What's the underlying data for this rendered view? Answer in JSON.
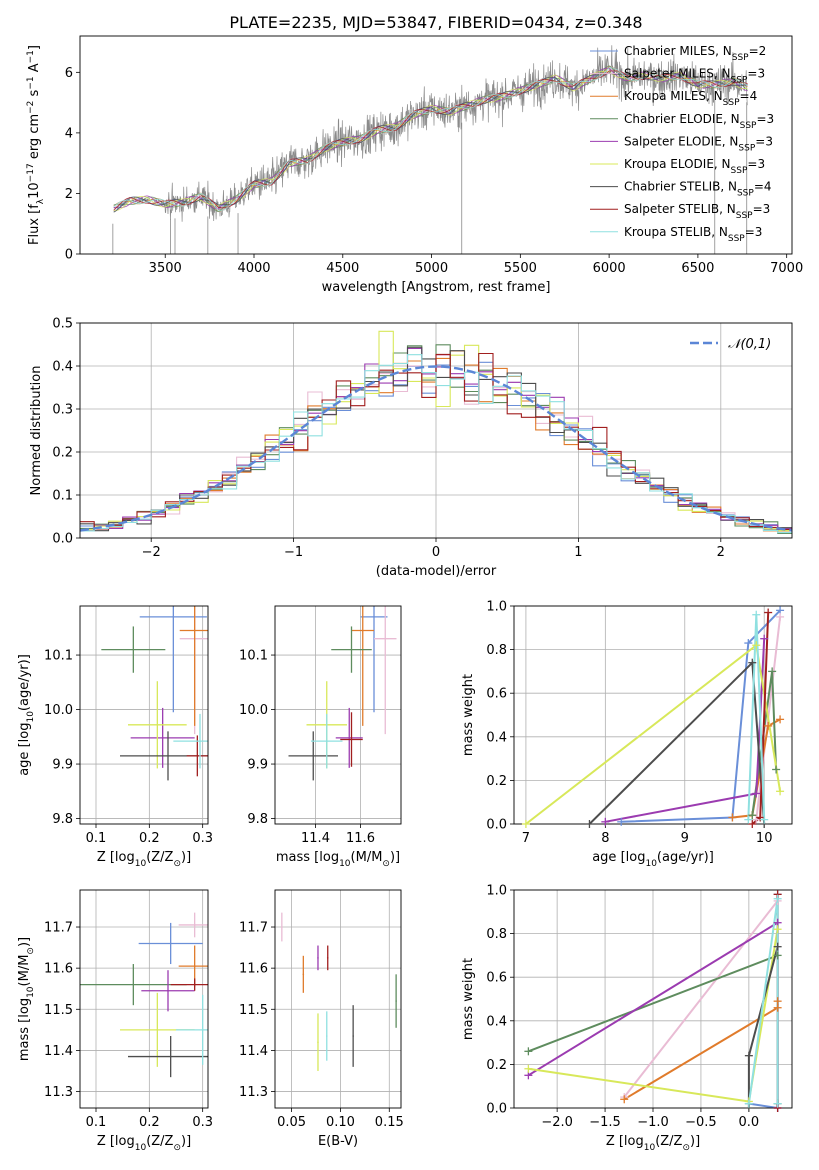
{
  "figure_title": "PLATE=2235, MJD=53847, FIBERID=0434, z=0.348",
  "models": [
    {
      "label": "Chabrier MILES, N",
      "nssp": "2",
      "color": "#6a8fd8"
    },
    {
      "label": "Salpeter MILES, N",
      "nssp": "3",
      "color": "#e9bcd4"
    },
    {
      "label": "Kroupa MILES, N",
      "nssp": "4",
      "color": "#e07b2b"
    },
    {
      "label": "Chabrier ELODIE, N",
      "nssp": "3",
      "color": "#5e8c5e"
    },
    {
      "label": "Salpeter ELODIE, N",
      "nssp": "3",
      "color": "#9b3bb0"
    },
    {
      "label": "Kroupa ELODIE, N",
      "nssp": "3",
      "color": "#d8e85a"
    },
    {
      "label": "Chabrier STELIB, N",
      "nssp": "4",
      "color": "#4d4d4d"
    },
    {
      "label": "Salpeter STELIB, N",
      "nssp": "3",
      "color": "#a11f1f"
    },
    {
      "label": "Kroupa STELIB, N",
      "nssp": "3",
      "color": "#8fe0e0"
    }
  ],
  "legend_subscript": "SSP",
  "chart_data": [
    {
      "id": "spectrum",
      "type": "line",
      "xlabel": "wavelength [Angstrom, rest frame]",
      "ylabel": "Flux [f$_\\lambda$10$^{-17}$ erg cm$^{-2}$ s$^{-1}$ A$^{-1}$]",
      "xlim": [
        3020,
        7030
      ],
      "ylim": [
        0,
        7.2
      ],
      "xticks": [
        3500,
        4000,
        4500,
        5000,
        5500,
        6000,
        6500,
        7000
      ],
      "yticks": [
        0,
        2,
        4,
        6
      ],
      "continuum": {
        "x": [
          3210,
          3300,
          3400,
          3500,
          3600,
          3700,
          3800,
          3900,
          4000,
          4100,
          4200,
          4300,
          4400,
          4500,
          4600,
          4700,
          4800,
          4900,
          5000,
          5100,
          5200,
          5300,
          5400,
          5500,
          5600,
          5700,
          5800,
          5900,
          6000,
          6100,
          6200,
          6300,
          6400,
          6500,
          6600,
          6700,
          6780
        ],
        "y": [
          1.5,
          1.75,
          1.8,
          1.65,
          1.7,
          1.9,
          1.5,
          1.8,
          2.3,
          2.4,
          3.0,
          3.1,
          3.5,
          3.7,
          3.8,
          4.1,
          4.2,
          4.6,
          4.8,
          4.7,
          4.9,
          5.1,
          5.2,
          5.4,
          5.6,
          5.8,
          5.5,
          5.8,
          6.1,
          5.8,
          5.9,
          5.8,
          5.9,
          5.6,
          5.6,
          5.7,
          5.5
        ]
      }
    },
    {
      "id": "residuals",
      "type": "histogram",
      "xlabel": "(data-model)/error",
      "ylabel": "Normed distribution",
      "xlim": [
        -2.5,
        2.5
      ],
      "ylim": [
        0,
        0.5
      ],
      "xticks": [
        -2,
        -1,
        0,
        1,
        2
      ],
      "yticks": [
        0.0,
        0.1,
        0.2,
        0.3,
        0.4,
        0.5
      ],
      "reference_label": "$\\mathcal{N}(0,1)$",
      "legend": "top-right",
      "bin_width": 0.1
    },
    {
      "id": "z-vs-age",
      "type": "errorbar",
      "xlabel": "Z [log$_{10}$(Z/Z$_\\odot$)]",
      "ylabel": "age  [log$_{10}$(age/yr)]",
      "xlim": [
        0.07,
        0.31
      ],
      "ylim": [
        9.79,
        10.19
      ],
      "xticks": [
        0.1,
        0.2,
        0.3
      ],
      "yticks": [
        9.8,
        9.9,
        10.0,
        10.1
      ],
      "points": [
        {
          "m": 0,
          "x": 0.245,
          "y": 10.17,
          "xerr": 0.063,
          "yerr": 0.35
        },
        {
          "m": 1,
          "x": 0.285,
          "y": 10.13,
          "xerr": 0.028,
          "yerr": 0.35
        },
        {
          "m": 2,
          "x": 0.285,
          "y": 10.145,
          "xerr": 0.028,
          "yerr": 0.35
        },
        {
          "m": 3,
          "x": 0.17,
          "y": 10.11,
          "xerr": 0.06,
          "yerr": 0.085
        },
        {
          "m": 4,
          "x": 0.225,
          "y": 9.948,
          "xerr": 0.06,
          "yerr": 0.11
        },
        {
          "m": 5,
          "x": 0.215,
          "y": 9.972,
          "xerr": 0.055,
          "yerr": 0.16
        },
        {
          "m": 6,
          "x": 0.235,
          "y": 9.915,
          "xerr": 0.09,
          "yerr": 0.09
        },
        {
          "m": 7,
          "x": 0.29,
          "y": 9.915,
          "xerr": 0.02,
          "yerr": 0.075
        },
        {
          "m": 8,
          "x": 0.295,
          "y": 9.942,
          "xerr": 0.05,
          "yerr": 0.1
        }
      ]
    },
    {
      "id": "mass-vs-age",
      "type": "errorbar",
      "xlabel": "mass [log$_{10}$(M/M$_\\odot$)]",
      "ylabel": "",
      "xlim": [
        11.22,
        11.78
      ],
      "ylim": [
        9.79,
        10.19
      ],
      "xticks": [
        11.4,
        11.6
      ],
      "yticks": [
        9.8,
        9.9,
        10.0,
        10.1
      ],
      "points": [
        {
          "m": 0,
          "x": 11.66,
          "y": 10.17,
          "xerr": 0.06,
          "yerr": 0.35
        },
        {
          "m": 1,
          "x": 11.71,
          "y": 10.13,
          "xerr": 0.05,
          "yerr": 0.35
        },
        {
          "m": 2,
          "x": 11.61,
          "y": 10.145,
          "xerr": 0.05,
          "yerr": 0.35
        },
        {
          "m": 3,
          "x": 11.56,
          "y": 10.11,
          "xerr": 0.09,
          "yerr": 0.085
        },
        {
          "m": 4,
          "x": 11.55,
          "y": 9.948,
          "xerr": 0.06,
          "yerr": 0.11
        },
        {
          "m": 5,
          "x": 11.45,
          "y": 9.972,
          "xerr": 0.09,
          "yerr": 0.16
        },
        {
          "m": 6,
          "x": 11.39,
          "y": 9.915,
          "xerr": 0.11,
          "yerr": 0.09
        },
        {
          "m": 7,
          "x": 11.56,
          "y": 9.945,
          "xerr": 0.05,
          "yerr": 0.1
        },
        {
          "m": 8,
          "x": 11.45,
          "y": 9.942,
          "xerr": 0.07,
          "yerr": 0.1
        }
      ]
    },
    {
      "id": "weights-vs-age",
      "type": "line",
      "xlabel": "age  [log$_{10}$(age/yr)]",
      "ylabel": "mass weight",
      "xlim": [
        6.85,
        10.35
      ],
      "ylim": [
        0,
        1
      ],
      "xticks": [
        7,
        8,
        9,
        10
      ],
      "yticks": [
        0.0,
        0.2,
        0.4,
        0.6,
        0.8,
        1.0
      ],
      "series": [
        {
          "m": 0,
          "x": [
            8.2,
            9.6,
            9.8,
            10.2
          ],
          "y": [
            0.01,
            0.03,
            0.83,
            0.98
          ]
        },
        {
          "m": 1,
          "x": [
            9.9,
            10.2
          ],
          "y": [
            0.02,
            0.95
          ]
        },
        {
          "m": 2,
          "x": [
            9.6,
            9.85,
            10.05,
            10.2
          ],
          "y": [
            0.03,
            0.04,
            0.45,
            0.48
          ]
        },
        {
          "m": 3,
          "x": [
            9.85,
            10.1,
            10.15
          ],
          "y": [
            0.04,
            0.7,
            0.25
          ]
        },
        {
          "m": 4,
          "x": [
            8.0,
            9.9,
            10.0
          ],
          "y": [
            0.01,
            0.14,
            0.85
          ]
        },
        {
          "m": 5,
          "x": [
            7.0,
            9.9,
            10.2
          ],
          "y": [
            0.0,
            0.82,
            0.15
          ]
        },
        {
          "m": 6,
          "x": [
            7.8,
            9.85,
            10.0
          ],
          "y": [
            0.0,
            0.74,
            0.0
          ]
        },
        {
          "m": 7,
          "x": [
            9.85,
            9.95,
            10.05
          ],
          "y": [
            0.0,
            0.03,
            0.97
          ]
        },
        {
          "m": 8,
          "x": [
            9.8,
            9.9,
            10.0
          ],
          "y": [
            0.02,
            0.96,
            0.02
          ]
        }
      ]
    },
    {
      "id": "z-vs-mass",
      "type": "errorbar",
      "xlabel": "Z [log$_{10}$(Z/Z$_\\odot$)]",
      "ylabel": "mass [log$_{10}$(M/M$_\\odot$)]",
      "xlim": [
        0.07,
        0.31
      ],
      "ylim": [
        11.26,
        11.79
      ],
      "xticks": [
        0.1,
        0.2,
        0.3
      ],
      "yticks": [
        11.3,
        11.4,
        11.5,
        11.6,
        11.7
      ],
      "points": [
        {
          "m": 0,
          "x": 0.24,
          "y": 11.66,
          "xerr": 0.06,
          "yerr": 0.1
        },
        {
          "m": 1,
          "x": 0.285,
          "y": 11.705,
          "xerr": 0.03,
          "yerr": 0.06
        },
        {
          "m": 2,
          "x": 0.285,
          "y": 11.605,
          "xerr": 0.03,
          "yerr": 0.1
        },
        {
          "m": 3,
          "x": 0.17,
          "y": 11.56,
          "xerr": 0.1,
          "yerr": 0.1
        },
        {
          "m": 4,
          "x": 0.235,
          "y": 11.545,
          "xerr": 0.05,
          "yerr": 0.1
        },
        {
          "m": 5,
          "x": 0.215,
          "y": 11.45,
          "xerr": 0.07,
          "yerr": 0.18
        },
        {
          "m": 6,
          "x": 0.24,
          "y": 11.385,
          "xerr": 0.08,
          "yerr": 0.1
        },
        {
          "m": 7,
          "x": 0.285,
          "y": 11.56,
          "xerr": 0.045,
          "yerr": 0.03
        },
        {
          "m": 8,
          "x": 0.3,
          "y": 11.45,
          "xerr": 0.05,
          "yerr": 0.17
        }
      ]
    },
    {
      "id": "ebv-vs-mass",
      "type": "errorbar",
      "xlabel": "E(B-V)",
      "ylabel": "",
      "xlim": [
        0.033,
        0.162
      ],
      "ylim": [
        11.26,
        11.79
      ],
      "xticks": [
        0.05,
        0.1,
        0.15
      ],
      "yticks": [
        11.3,
        11.4,
        11.5,
        11.6,
        11.7
      ],
      "points": [
        {
          "m": 1,
          "x": 0.04,
          "y": 11.7,
          "xerr": 0.0,
          "yerr": 0.07
        },
        {
          "m": 2,
          "x": 0.062,
          "y": 11.585,
          "xerr": 0.0,
          "yerr": 0.09
        },
        {
          "m": 4,
          "x": 0.077,
          "y": 11.625,
          "xerr": 0.0,
          "yerr": 0.06
        },
        {
          "m": 5,
          "x": 0.077,
          "y": 11.42,
          "xerr": 0.0,
          "yerr": 0.14
        },
        {
          "m": 7,
          "x": 0.087,
          "y": 11.625,
          "xerr": 0.0,
          "yerr": 0.06
        },
        {
          "m": 8,
          "x": 0.086,
          "y": 11.435,
          "xerr": 0.0,
          "yerr": 0.12
        },
        {
          "m": 6,
          "x": 0.113,
          "y": 11.435,
          "xerr": 0.0,
          "yerr": 0.15
        },
        {
          "m": 3,
          "x": 0.157,
          "y": 11.52,
          "xerr": 0.0,
          "yerr": 0.13
        }
      ]
    },
    {
      "id": "weights-vs-z",
      "type": "line",
      "xlabel": "Z [log$_{10}$(Z/Z$_\\odot$)]",
      "ylabel": "mass weight",
      "xlim": [
        -2.45,
        0.45
      ],
      "ylim": [
        0,
        1
      ],
      "xticks": [
        -2.0,
        -1.5,
        -1.0,
        -0.5,
        0.0
      ],
      "yticks": [
        0.0,
        0.2,
        0.4,
        0.6,
        0.8,
        1.0
      ],
      "series": [
        {
          "m": 0,
          "x": [
            0.0,
            0.3,
            0.3
          ],
          "y": [
            0.02,
            0.0,
            0.98
          ]
        },
        {
          "m": 1,
          "x": [
            -1.3,
            0.3
          ],
          "y": [
            0.05,
            0.95
          ]
        },
        {
          "m": 2,
          "x": [
            -1.3,
            0.3,
            0.3
          ],
          "y": [
            0.04,
            0.46,
            0.49
          ]
        },
        {
          "m": 3,
          "x": [
            -2.3,
            0.3,
            0.3
          ],
          "y": [
            0.26,
            0.7,
            0.02
          ]
        },
        {
          "m": 4,
          "x": [
            -2.3,
            0.3,
            0.3
          ],
          "y": [
            0.15,
            0.85,
            0.0
          ]
        },
        {
          "m": 5,
          "x": [
            -2.3,
            0.0,
            0.3
          ],
          "y": [
            0.18,
            0.03,
            0.82
          ]
        },
        {
          "m": 6,
          "x": [
            0.0,
            0.0,
            0.3
          ],
          "y": [
            0.0,
            0.24,
            0.74
          ]
        },
        {
          "m": 7,
          "x": [
            0.3,
            0.3
          ],
          "y": [
            0.0,
            0.98
          ]
        },
        {
          "m": 8,
          "x": [
            0.0,
            0.3,
            0.3
          ],
          "y": [
            0.02,
            0.96,
            0.02
          ]
        }
      ]
    }
  ]
}
